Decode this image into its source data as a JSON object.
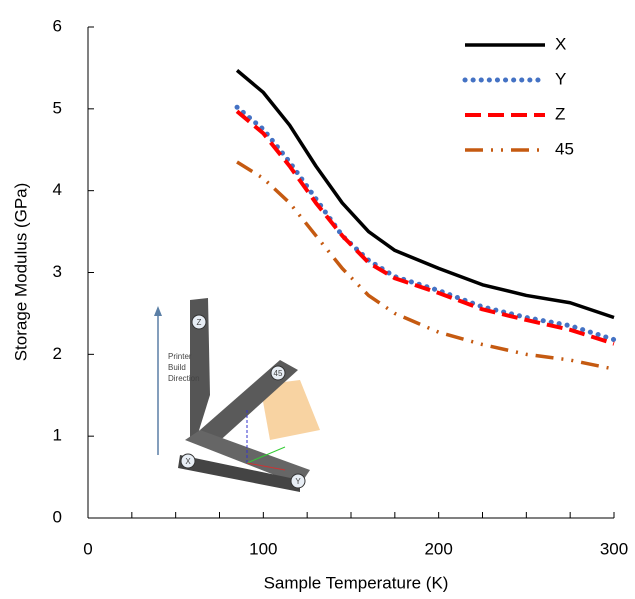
{
  "chart_data": {
    "type": "line",
    "x_label": "Sample Temperature (K)",
    "y_label": "Storage Modulus (GPa)",
    "x": [
      85,
      100,
      115,
      130,
      145,
      160,
      175,
      200,
      225,
      250,
      275,
      300
    ],
    "series": [
      {
        "name": "X",
        "color": "#000000",
        "dash": "solid",
        "values": [
          5.47,
          5.2,
          4.8,
          4.3,
          3.85,
          3.5,
          3.27,
          3.05,
          2.85,
          2.72,
          2.63,
          2.45
        ]
      },
      {
        "name": "Y",
        "color": "#4472c4",
        "dash": "dotted",
        "values": [
          5.02,
          4.75,
          4.35,
          3.9,
          3.45,
          3.15,
          2.95,
          2.78,
          2.58,
          2.45,
          2.35,
          2.18
        ]
      },
      {
        "name": "Z",
        "color": "#ff0000",
        "dash": "dashed",
        "values": [
          4.97,
          4.7,
          4.3,
          3.85,
          3.45,
          3.12,
          2.93,
          2.75,
          2.55,
          2.42,
          2.3,
          2.13
        ]
      },
      {
        "name": "45",
        "color": "#c55a11",
        "dash": "dashdot",
        "values": [
          4.35,
          4.15,
          3.85,
          3.45,
          3.05,
          2.72,
          2.5,
          2.27,
          2.12,
          2.0,
          1.93,
          1.82
        ]
      }
    ],
    "xlim": [
      0,
      300
    ],
    "xticks": [
      0,
      100,
      200,
      300
    ],
    "ylim": [
      0,
      6
    ],
    "yticks": [
      0,
      1,
      2,
      3,
      4,
      5,
      6
    ],
    "legend": "upper right",
    "inset": {
      "caption": [
        "Printer",
        "Build",
        "Direction"
      ],
      "labels": [
        "Z",
        "45",
        "X",
        "Y"
      ]
    }
  }
}
